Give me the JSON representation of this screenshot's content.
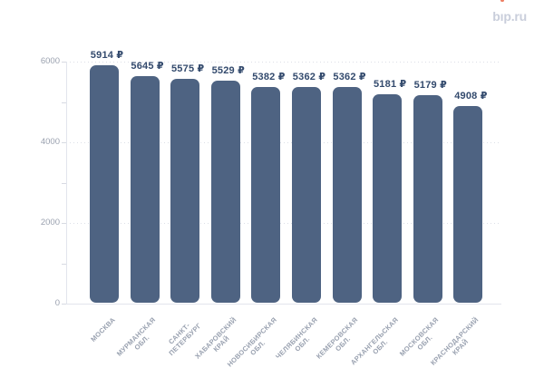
{
  "logo": {
    "text": "bip.ru",
    "text_color": "#c9cedb",
    "dot_color": "#ed7f63"
  },
  "chart_data": {
    "type": "bar",
    "title": "",
    "xlabel": "",
    "ylabel": "",
    "categories": [
      "МОСКВА",
      "МУРМАНСКАЯ ОБЛ.",
      "САНКТ-ПЕТЕРБУРГ",
      "ХАБАРОВСКИЙ КРАЙ",
      "НОВОСИБИРСКАЯ ОБЛ.",
      "ЧЕЛЯБИНСКАЯ ОБЛ.",
      "КЕМЕРОВСКАЯ ОБЛ.",
      "АРХАНГЕЛЬСКАЯ ОБЛ.",
      "МОСКОВСКАЯ ОБЛ.",
      "КРАСНОДАРСКИЙ КРАЙ"
    ],
    "category_lines": [
      [
        "МОСКВА"
      ],
      [
        "МУРМАНСКАЯ",
        "ОБЛ."
      ],
      [
        "САНКТ-",
        "ПЕТЕРБУРГ"
      ],
      [
        "ХАБАРОВСКИЙ",
        "КРАЙ"
      ],
      [
        "НОВОСИБИРСКАЯ",
        "ОБЛ."
      ],
      [
        "ЧЕЛЯБИНСКАЯ",
        "ОБЛ."
      ],
      [
        "КЕМЕРОВСКАЯ",
        "ОБЛ."
      ],
      [
        "АРХАНГЕЛЬСКАЯ",
        "ОБЛ."
      ],
      [
        "МОСКОВСКАЯ",
        "ОБЛ."
      ],
      [
        "КРАСНОДАРСКИЙ",
        "КРАЙ"
      ]
    ],
    "values": [
      5914,
      5645,
      5575,
      5529,
      5382,
      5362,
      5362,
      5181,
      5179,
      4908
    ],
    "value_labels": [
      "5914 ₽",
      "5645 ₽",
      "5575 ₽",
      "5529 ₽",
      "5382 ₽",
      "5362 ₽",
      "5362 ₽",
      "5181 ₽",
      "5179 ₽",
      "4908 ₽"
    ],
    "currency_suffix": "₽",
    "ylim": [
      0,
      6000
    ],
    "yticks": [
      0,
      2000,
      4000,
      6000
    ],
    "ytick_minor_step": 1000,
    "grid": "horizontal dotted at major yticks",
    "legend": "none",
    "bar_color": "#4e6382",
    "value_label_color": "#334a6d",
    "axis_label_color": "#9aa1af"
  }
}
